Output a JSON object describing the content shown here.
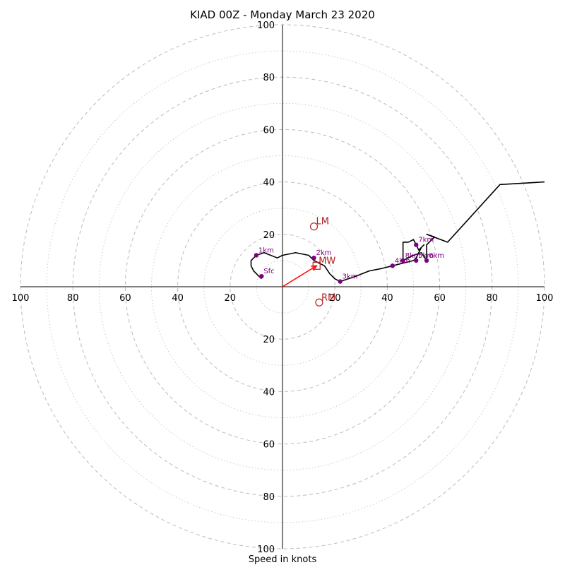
{
  "chart_data": {
    "type": "hodograph",
    "title": "KIAD 00Z - Monday March 23 2020",
    "xlabel": "Speed in knots",
    "ring_labels": [
      "20",
      "40",
      "60",
      "80",
      "100"
    ],
    "axis_range": [
      -100,
      100
    ],
    "rings_dashed": [
      20,
      40,
      60,
      80,
      100
    ],
    "rings_dotted": [
      10,
      30,
      50,
      70,
      90
    ],
    "grid": true,
    "profile": [
      [
        -8,
        3
      ],
      [
        -11,
        6
      ],
      [
        -12,
        8
      ],
      [
        -12,
        10
      ],
      [
        -10,
        12
      ],
      [
        -7,
        13
      ],
      [
        -2,
        11
      ],
      [
        0,
        12
      ],
      [
        5,
        13
      ],
      [
        10,
        12
      ],
      [
        12,
        10
      ],
      [
        16,
        8
      ],
      [
        18,
        5
      ],
      [
        20,
        3
      ],
      [
        22,
        2
      ],
      [
        28,
        4
      ],
      [
        33,
        6
      ],
      [
        38,
        7
      ],
      [
        42,
        8
      ],
      [
        46,
        9
      ],
      [
        50,
        10
      ],
      [
        51,
        11
      ],
      [
        52,
        13
      ],
      [
        53,
        15
      ],
      [
        54,
        16
      ],
      [
        52,
        14
      ],
      [
        50,
        18
      ],
      [
        48,
        17
      ],
      [
        46,
        17
      ],
      [
        46,
        10
      ],
      [
        50,
        12
      ],
      [
        53,
        13
      ],
      [
        55,
        10
      ],
      [
        55,
        16
      ],
      [
        58,
        19
      ],
      [
        55,
        20
      ],
      [
        63,
        17
      ],
      [
        83,
        39
      ],
      [
        100,
        40
      ]
    ],
    "heights": [
      {
        "label": "Sfc",
        "u": -8,
        "v": 4
      },
      {
        "label": "1km",
        "u": -10,
        "v": 12
      },
      {
        "label": "2km",
        "u": 12,
        "v": 11
      },
      {
        "label": "3km",
        "u": 22,
        "v": 2
      },
      {
        "label": "4km",
        "u": 42,
        "v": 8
      },
      {
        "label": "5km",
        "u": 51,
        "v": 10
      },
      {
        "label": "6km",
        "u": 55,
        "v": 10
      },
      {
        "label": "7km",
        "u": 51,
        "v": 16
      },
      {
        "label": "8km",
        "u": 46,
        "v": 10
      }
    ],
    "motion_points": [
      {
        "label": "LM",
        "u": 12,
        "v": 23,
        "marker": "circle"
      },
      {
        "label": "RM",
        "u": 14,
        "v": -6,
        "marker": "circle"
      },
      {
        "label": "MW",
        "u": 13,
        "v": 8,
        "marker": "square"
      }
    ],
    "shear_vector": {
      "u": 13,
      "v": 8
    },
    "colors": {
      "profile": "#000000",
      "height_markers": "#800080",
      "motion": "#b22222",
      "shear_vector": "#ff0000",
      "grid": "#bbbbbb"
    }
  }
}
